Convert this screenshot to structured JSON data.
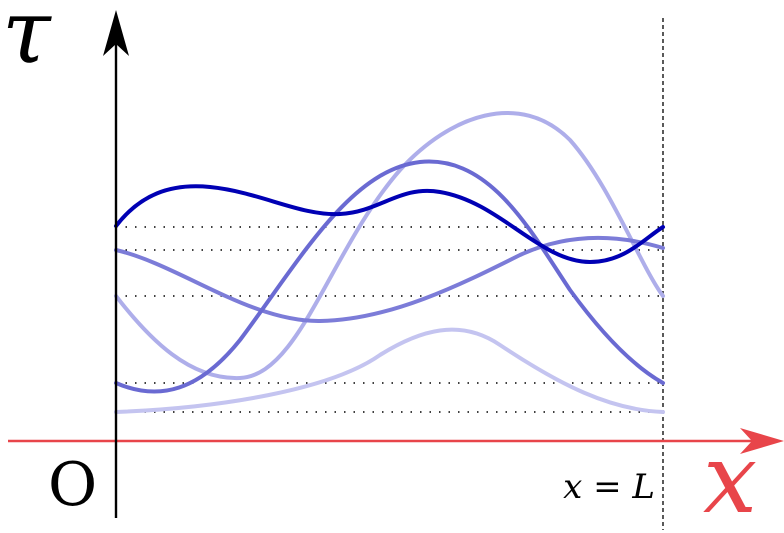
{
  "labels": {
    "tau": "τ",
    "origin": "O",
    "boundary": "x = L",
    "x_axis": "x"
  }
}
